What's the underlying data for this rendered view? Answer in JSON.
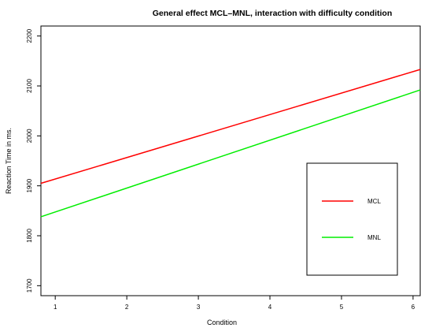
{
  "chart_data": {
    "type": "line",
    "title": "General effect MCL–MNL, interaction with difficulty condition",
    "xlabel": "Condition",
    "ylabel": "Reaction Time in ms.",
    "xlim": [
      0.8,
      6.1
    ],
    "ylim": [
      1680,
      2220
    ],
    "xticks": [
      "1",
      "2",
      "3",
      "4",
      "5",
      "6"
    ],
    "yticks": [
      "1700",
      "1800",
      "1900",
      "2000",
      "2100",
      "2200"
    ],
    "grid": false,
    "legend_position": "right",
    "series": [
      {
        "name": "MCL",
        "color": "#ff0000",
        "x": [
          0.8,
          6.1
        ],
        "y": [
          1905,
          2133
        ]
      },
      {
        "name": "MNL",
        "color": "#00ee00",
        "x": [
          0.8,
          6.1
        ],
        "y": [
          1838,
          2092
        ]
      }
    ]
  }
}
